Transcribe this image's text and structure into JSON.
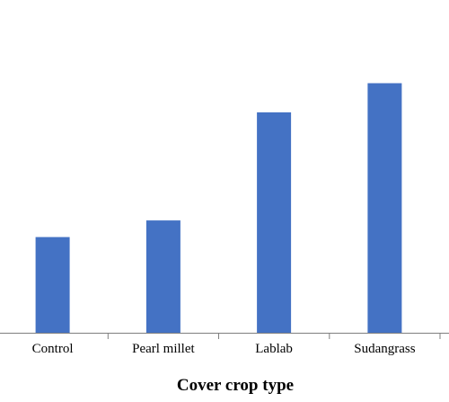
{
  "chart_data": {
    "type": "bar",
    "categories": [
      "Control",
      "Pearl millet",
      "Lablab",
      "Sudangrass"
    ],
    "values": [
      23,
      27,
      53,
      60
    ],
    "ylim": [
      0,
      80
    ],
    "title": "",
    "xlabel": "Cover crop type",
    "ylabel": "",
    "grid": false,
    "legend": "none",
    "colors": {
      "bar": "#4472C4",
      "axis": "#000000",
      "text": "#000000"
    }
  }
}
